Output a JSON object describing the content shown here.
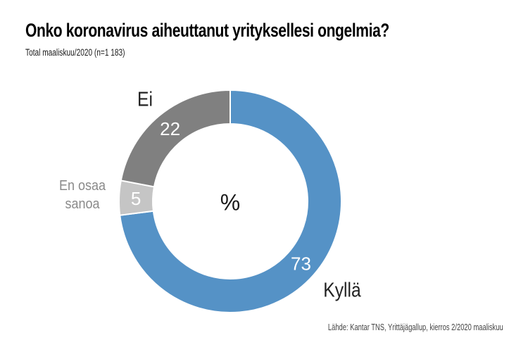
{
  "meta": {
    "title": "Onko koronavirus aiheuttanut yrityksellesi ongelmia?",
    "subtitle": "Total maaliskuu/2020 (n=1 183)",
    "source": "Lähde: Kantar TNS, Yrittäjägallup, kierros 2/2020 maaliskuu"
  },
  "chart_data": {
    "type": "pie",
    "variant": "donut",
    "title": "Onko koronavirus aiheuttanut yrityksellesi ongelmia?",
    "subtitle": "Total maaliskuu/2020 (n=1 183)",
    "unit": "%",
    "center_label": "%",
    "start_angle_deg": 0,
    "direction": "clockwise",
    "slices": [
      {
        "label": "Kyllä",
        "value": 73,
        "color": "#5592c6"
      },
      {
        "label": "En osaa sanoa",
        "value": 5,
        "color": "#c5c5c5"
      },
      {
        "label": "Ei",
        "value": 22,
        "color": "#808080"
      }
    ],
    "value_label_color": "#ffffff",
    "separator_color": "#ffffff",
    "legend_position": "outside-labels"
  },
  "colors": {
    "background": "#ffffff",
    "title_text": "#000000",
    "category_label_text": "#222222",
    "muted_label_text": "#8a8a8a",
    "source_text": "#444444"
  }
}
